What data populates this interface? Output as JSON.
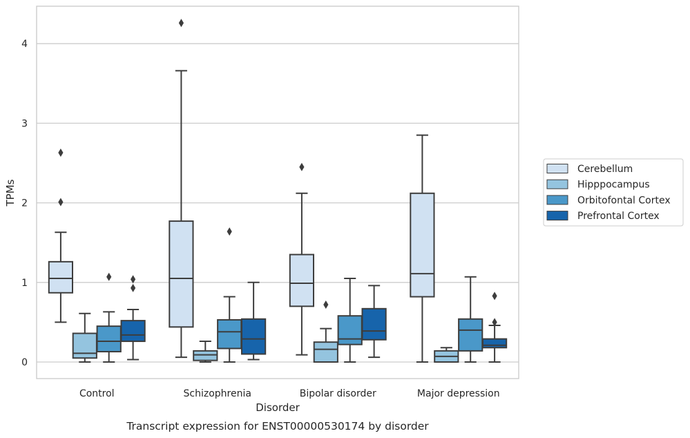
{
  "caption": "Transcript expression for ENST00000530174 by disorder",
  "chart_data": {
    "type": "box",
    "xlabel": "Disorder",
    "ylabel": "TPMs",
    "ylim": [
      -0.2,
      4.47
    ],
    "yticks": [
      0,
      1,
      2,
      3,
      4
    ],
    "grid": "horizontal",
    "legend_position": "outside-right",
    "categories": [
      "Control",
      "Schizophrenia",
      "Bipolar disorder",
      "Major depression"
    ],
    "series": [
      {
        "name": "Cerebellum",
        "color": "#d0e1f2",
        "boxes": [
          {
            "whislo": 0.5,
            "q1": 0.87,
            "med": 1.05,
            "q3": 1.26,
            "whishi": 1.63,
            "fliers": [
              2.01,
              2.63
            ]
          },
          {
            "whislo": 0.06,
            "q1": 0.44,
            "med": 1.05,
            "q3": 1.77,
            "whishi": 3.66,
            "fliers": [
              4.26
            ]
          },
          {
            "whislo": 0.09,
            "q1": 0.7,
            "med": 0.99,
            "q3": 1.35,
            "whishi": 2.12,
            "fliers": [
              2.45
            ]
          },
          {
            "whislo": 0.0,
            "q1": 0.82,
            "med": 1.11,
            "q3": 2.12,
            "whishi": 2.85,
            "fliers": []
          }
        ]
      },
      {
        "name": "Hipppocampus",
        "color": "#94c4df",
        "boxes": [
          {
            "whislo": 0.0,
            "q1": 0.05,
            "med": 0.11,
            "q3": 0.36,
            "whishi": 0.61,
            "fliers": []
          },
          {
            "whislo": 0.0,
            "q1": 0.02,
            "med": 0.09,
            "q3": 0.14,
            "whishi": 0.26,
            "fliers": []
          },
          {
            "whislo": 0.0,
            "q1": 0.0,
            "med": 0.16,
            "q3": 0.25,
            "whishi": 0.42,
            "fliers": [
              0.72
            ]
          },
          {
            "whislo": 0.0,
            "q1": 0.0,
            "med": 0.07,
            "q3": 0.14,
            "whishi": 0.18,
            "fliers": []
          }
        ]
      },
      {
        "name": "Orbitofontal Cortex",
        "color": "#4a98c9",
        "boxes": [
          {
            "whislo": 0.0,
            "q1": 0.13,
            "med": 0.26,
            "q3": 0.45,
            "whishi": 0.63,
            "fliers": [
              1.07
            ]
          },
          {
            "whislo": 0.0,
            "q1": 0.17,
            "med": 0.38,
            "q3": 0.53,
            "whishi": 0.82,
            "fliers": [
              1.64
            ]
          },
          {
            "whislo": 0.0,
            "q1": 0.22,
            "med": 0.29,
            "q3": 0.58,
            "whishi": 1.05,
            "fliers": []
          },
          {
            "whislo": 0.0,
            "q1": 0.14,
            "med": 0.4,
            "q3": 0.54,
            "whishi": 1.07,
            "fliers": []
          }
        ]
      },
      {
        "name": "Prefrontal Cortex",
        "color": "#1764ab",
        "boxes": [
          {
            "whislo": 0.03,
            "q1": 0.26,
            "med": 0.34,
            "q3": 0.52,
            "whishi": 0.66,
            "fliers": [
              0.93,
              1.04
            ]
          },
          {
            "whislo": 0.03,
            "q1": 0.1,
            "med": 0.29,
            "q3": 0.54,
            "whishi": 1.0,
            "fliers": []
          },
          {
            "whislo": 0.06,
            "q1": 0.28,
            "med": 0.39,
            "q3": 0.67,
            "whishi": 0.96,
            "fliers": []
          },
          {
            "whislo": 0.0,
            "q1": 0.18,
            "med": 0.21,
            "q3": 0.29,
            "whishi": 0.46,
            "fliers": [
              0.5,
              0.83
            ]
          }
        ]
      }
    ]
  }
}
